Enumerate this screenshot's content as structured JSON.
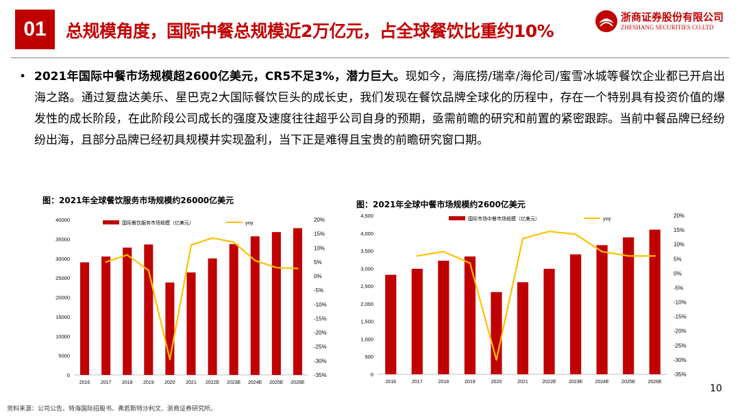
{
  "header": {
    "section_number": "01",
    "title": "总规模角度，国际中餐总规模近2万亿元，占全球餐饮比重约10%",
    "logo_cn": "浙商证券股份有限公司",
    "logo_en": "ZHESHANG SECURITIES CO.LTD"
  },
  "body": {
    "bullet": "•",
    "lead_bold": "2021年国际中餐市场规模超2600亿美元，CR5不足3%，潜力巨大。",
    "text": "现如今，海底捞/瑞幸/海伦司/蜜雪冰城等餐饮企业都已开启出海之路。通过复盘达美乐、星巴克2大国际餐饮巨头的成长史，我们发现在餐饮品牌全球化的历程中，存在一个特别具有投资价值的爆发性的成长阶段，在此阶段公司成长的强度及速度往往超乎公司自身的预期，亟需前瞻的研究和前置的紧密跟踪。当前中餐品牌已经纷纷出海，且部分品牌已经初具规模并实现盈利，当下正是难得且宝贵的前瞻研究窗口期。"
  },
  "colors": {
    "bar": "#c00000",
    "line": "#ffc000",
    "accent": "#c00000"
  },
  "chart_data": [
    {
      "type": "bar",
      "title": "图：2021年全球餐饮服务市场规模约26000亿美元",
      "categories": [
        "2016",
        "2017",
        "2018",
        "2019",
        "2020",
        "2021",
        "2022E",
        "2023E",
        "2024E",
        "2025E",
        "2026E"
      ],
      "series": [
        {
          "name": "国际餐饮服务市场规模（亿美元）",
          "axis": "left",
          "kind": "bar",
          "values": [
            29000,
            30500,
            32800,
            33600,
            23800,
            26400,
            30000,
            33700,
            35700,
            36800,
            37800
          ]
        },
        {
          "name": "yoy",
          "axis": "right",
          "kind": "line",
          "percent": true,
          "values": [
            null,
            5,
            7.5,
            2,
            -29.5,
            11,
            13.5,
            12,
            5.5,
            3,
            2.7
          ]
        }
      ],
      "ylim": [
        0,
        40000
      ],
      "y_ticks": [
        "0",
        "5000",
        "10000",
        "15000",
        "20000",
        "25000",
        "30000",
        "35000",
        "40000"
      ],
      "y2lim": [
        -35,
        20
      ],
      "y2_ticks": [
        "-35%",
        "-30%",
        "-25%",
        "-20%",
        "-15%",
        "-10%",
        "-5%",
        "0%",
        "5%",
        "10%",
        "15%",
        "20%"
      ],
      "legend_position": "top"
    },
    {
      "type": "bar",
      "title": "图：2021年全球中餐市场规模约2600亿美元",
      "categories": [
        "2016",
        "2017",
        "2018",
        "2019",
        "2020",
        "2021",
        "2022E",
        "2023E",
        "2024E",
        "2025E",
        "2026E"
      ],
      "series": [
        {
          "name": "国际市场中餐市场规模（亿美元）",
          "axis": "left",
          "kind": "bar",
          "values": [
            2820,
            2990,
            3220,
            3340,
            2330,
            2610,
            2990,
            3400,
            3660,
            3880,
            4100
          ]
        },
        {
          "name": "yoy",
          "axis": "right",
          "kind": "line",
          "percent": true,
          "values": [
            null,
            6,
            7.5,
            3.5,
            -30,
            12,
            14.5,
            13.5,
            7.5,
            6,
            6
          ]
        }
      ],
      "ylim": [
        0,
        4500
      ],
      "y_ticks": [
        "0",
        "500",
        "1,000",
        "1,500",
        "2,000",
        "2,500",
        "3,000",
        "3,500",
        "4,000",
        "4,500"
      ],
      "y2lim": [
        -35,
        20
      ],
      "y2_ticks": [
        "-35%",
        "-30%",
        "-25%",
        "-20%",
        "-15%",
        "-10%",
        "-5%",
        "0%",
        "5%",
        "10%",
        "15%",
        "20%"
      ],
      "legend_position": "top"
    }
  ],
  "footer": {
    "source": "资料来源：公司公告、特海国际招股书、弗若斯特沙利文、浙商证券研究所。",
    "page": "10"
  }
}
